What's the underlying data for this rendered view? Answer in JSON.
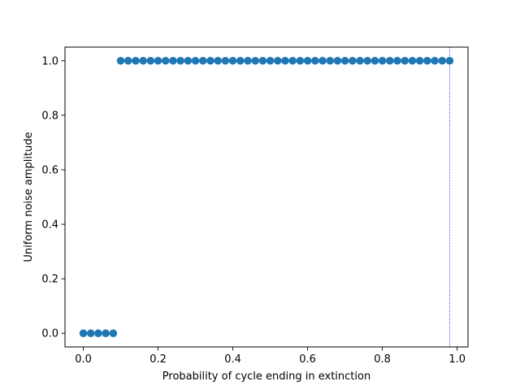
{
  "chart_data": {
    "type": "scatter",
    "xlabel": "Probability of cycle ending in extinction",
    "ylabel": "Uniform noise amplitude",
    "xlim": [
      -0.049,
      1.029
    ],
    "ylim": [
      -0.05,
      1.05
    ],
    "xticks": [
      "0.0",
      "0.2",
      "0.4",
      "0.6",
      "0.8",
      "1.0"
    ],
    "yticks": [
      "0.0",
      "0.2",
      "0.4",
      "0.6",
      "0.8",
      "1.0"
    ],
    "grid": false,
    "marker_color": "#1f77b4",
    "reference_line": {
      "x": 0.98,
      "color": "#0000cc",
      "style": "dotted"
    },
    "points": [
      {
        "x": 0.0,
        "y": 0.0
      },
      {
        "x": 0.02,
        "y": 0.0
      },
      {
        "x": 0.04,
        "y": 0.0
      },
      {
        "x": 0.06,
        "y": 0.0
      },
      {
        "x": 0.08,
        "y": 0.0
      },
      {
        "x": 0.1,
        "y": 1.0
      },
      {
        "x": 0.12,
        "y": 1.0
      },
      {
        "x": 0.14,
        "y": 1.0
      },
      {
        "x": 0.16,
        "y": 1.0
      },
      {
        "x": 0.18,
        "y": 1.0
      },
      {
        "x": 0.2,
        "y": 1.0
      },
      {
        "x": 0.22,
        "y": 1.0
      },
      {
        "x": 0.24,
        "y": 1.0
      },
      {
        "x": 0.26,
        "y": 1.0
      },
      {
        "x": 0.28,
        "y": 1.0
      },
      {
        "x": 0.3,
        "y": 1.0
      },
      {
        "x": 0.32,
        "y": 1.0
      },
      {
        "x": 0.34,
        "y": 1.0
      },
      {
        "x": 0.36,
        "y": 1.0
      },
      {
        "x": 0.38,
        "y": 1.0
      },
      {
        "x": 0.4,
        "y": 1.0
      },
      {
        "x": 0.42,
        "y": 1.0
      },
      {
        "x": 0.44,
        "y": 1.0
      },
      {
        "x": 0.46,
        "y": 1.0
      },
      {
        "x": 0.48,
        "y": 1.0
      },
      {
        "x": 0.5,
        "y": 1.0
      },
      {
        "x": 0.52,
        "y": 1.0
      },
      {
        "x": 0.54,
        "y": 1.0
      },
      {
        "x": 0.56,
        "y": 1.0
      },
      {
        "x": 0.58,
        "y": 1.0
      },
      {
        "x": 0.6,
        "y": 1.0
      },
      {
        "x": 0.62,
        "y": 1.0
      },
      {
        "x": 0.64,
        "y": 1.0
      },
      {
        "x": 0.66,
        "y": 1.0
      },
      {
        "x": 0.68,
        "y": 1.0
      },
      {
        "x": 0.7,
        "y": 1.0
      },
      {
        "x": 0.72,
        "y": 1.0
      },
      {
        "x": 0.74,
        "y": 1.0
      },
      {
        "x": 0.76,
        "y": 1.0
      },
      {
        "x": 0.78,
        "y": 1.0
      },
      {
        "x": 0.8,
        "y": 1.0
      },
      {
        "x": 0.82,
        "y": 1.0
      },
      {
        "x": 0.84,
        "y": 1.0
      },
      {
        "x": 0.86,
        "y": 1.0
      },
      {
        "x": 0.88,
        "y": 1.0
      },
      {
        "x": 0.9,
        "y": 1.0
      },
      {
        "x": 0.92,
        "y": 1.0
      },
      {
        "x": 0.94,
        "y": 1.0
      },
      {
        "x": 0.96,
        "y": 1.0
      },
      {
        "x": 0.98,
        "y": 1.0
      }
    ]
  }
}
